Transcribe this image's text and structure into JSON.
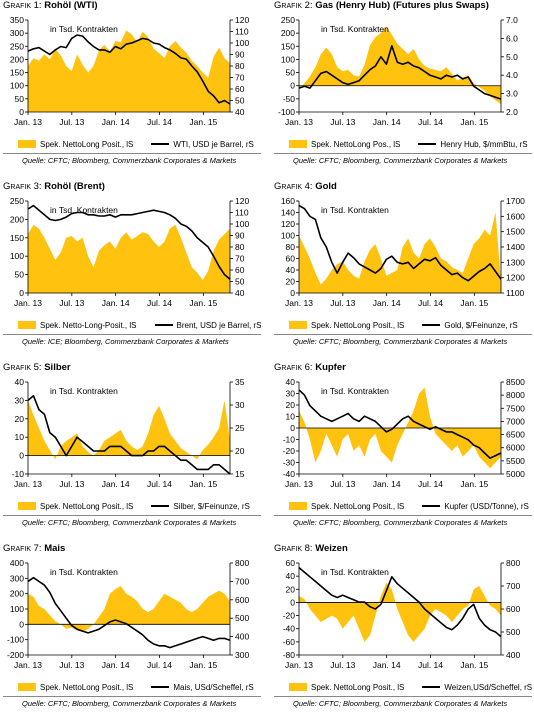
{
  "style": {
    "fill_color": "#ffc20e",
    "line_color": "#000000",
    "rule_color": "#888888"
  },
  "inner_label": "in Tsd. Kontrakten",
  "x_ticks": [
    "Jan. 13",
    "Jul. 13",
    "Jan. 14",
    "Jul. 14",
    "Jan. 15"
  ],
  "chart_data": [
    {
      "type": "area",
      "title_prefix": "Grafik 1:",
      "title_bold": "Rohöl (WTI)",
      "legend_area": "Spek. NettoLong Posit., lS",
      "legend_line": "WTI, USD je Barrel, rS",
      "source": "Quelle: CFTC; Bloomberg, Commerzbank Corporates & Markets",
      "y_left": {
        "min": 0,
        "max": 350,
        "ticks": [
          0,
          50,
          100,
          150,
          200,
          250,
          300,
          350
        ]
      },
      "y_right": {
        "min": 40,
        "max": 120,
        "ticks": [
          40,
          50,
          60,
          70,
          80,
          90,
          100,
          110,
          120
        ]
      },
      "series": [
        {
          "axis": "left",
          "kind": "area",
          "values": [
            175,
            205,
            195,
            220,
            200,
            240,
            215,
            175,
            155,
            220,
            180,
            150,
            175,
            235,
            255,
            230,
            270,
            265,
            310,
            295,
            265,
            305,
            285,
            240,
            225,
            205,
            250,
            270,
            245,
            225,
            195,
            175,
            150,
            130,
            210,
            245,
            205,
            185
          ]
        },
        {
          "axis": "right",
          "kind": "line",
          "values": [
            93,
            95,
            96,
            93,
            90,
            94,
            97,
            96,
            104,
            107,
            106,
            101,
            97,
            94,
            94,
            92,
            97,
            95,
            99,
            100,
            102,
            104,
            103,
            100,
            99,
            96,
            94,
            91,
            87,
            86,
            80,
            75,
            67,
            58,
            54,
            48,
            50,
            47
          ]
        }
      ]
    },
    {
      "type": "area",
      "title_prefix": "Grafik 2:",
      "title_bold": "Gas (Henry Hub) (Futures plus Swaps)",
      "legend_area": "Spek. NettoLong Pos., lS",
      "legend_line": "Henry Hub, $/mmBtu, rS",
      "source": "Quelle: CFTC; Bloomberg, Commerzbank Corporates & Markets",
      "y_left": {
        "min": -100,
        "max": 250,
        "ticks": [
          -100,
          -50,
          0,
          50,
          100,
          150,
          200,
          250
        ]
      },
      "y_right": {
        "min": 2.0,
        "max": 7.0,
        "ticks": [
          "2.0",
          "3.0",
          "4.0",
          "5.0",
          "6.0",
          "7.0"
        ]
      },
      "series": [
        {
          "axis": "left",
          "kind": "area",
          "values": [
            -10,
            10,
            35,
            70,
            120,
            145,
            120,
            70,
            55,
            60,
            40,
            35,
            80,
            155,
            185,
            200,
            225,
            195,
            160,
            140,
            120,
            140,
            100,
            75,
            65,
            60,
            55,
            70,
            45,
            20,
            30,
            40,
            10,
            -5,
            -20,
            -40,
            -55,
            -70
          ]
        },
        {
          "axis": "right",
          "kind": "line",
          "values": [
            3.3,
            3.4,
            3.3,
            3.7,
            4.1,
            4.2,
            4.0,
            3.8,
            3.6,
            3.5,
            3.6,
            3.7,
            4.0,
            4.3,
            4.5,
            5.0,
            4.6,
            5.6,
            4.7,
            4.6,
            4.7,
            4.5,
            4.4,
            4.2,
            4.0,
            3.9,
            3.8,
            4.0,
            3.9,
            4.0,
            3.8,
            3.9,
            3.4,
            3.2,
            3.0,
            2.9,
            2.8,
            2.7
          ]
        }
      ]
    },
    {
      "type": "area",
      "title_prefix": "Grafik 3:",
      "title_bold": "Rohöl (Brent)",
      "legend_area": "Spek. Netto-Long-Posit., lS",
      "legend_line": "Brent, USD je Barrel, rS",
      "source": "Quelle: ICE; Bloomberg, Commerzbank Corporates & Markets",
      "y_left": {
        "min": 0,
        "max": 250,
        "ticks": [
          0,
          50,
          100,
          150,
          200,
          250
        ]
      },
      "y_right": {
        "min": 40,
        "max": 120,
        "ticks": [
          40,
          50,
          60,
          70,
          80,
          90,
          100,
          110,
          120
        ]
      },
      "series": [
        {
          "axis": "left",
          "kind": "area",
          "values": [
            160,
            185,
            175,
            150,
            120,
            90,
            110,
            150,
            155,
            140,
            150,
            100,
            70,
            115,
            130,
            140,
            120,
            150,
            165,
            145,
            155,
            165,
            160,
            140,
            125,
            140,
            175,
            185,
            150,
            110,
            70,
            55,
            35,
            60,
            115,
            145,
            160,
            175
          ]
        },
        {
          "axis": "right",
          "kind": "line",
          "values": [
            113,
            116,
            112,
            108,
            104,
            103,
            104,
            106,
            109,
            110,
            110,
            108,
            108,
            107,
            107,
            108,
            106,
            108,
            108,
            108,
            109,
            110,
            111,
            112,
            111,
            110,
            108,
            105,
            100,
            98,
            94,
            88,
            84,
            80,
            72,
            63,
            56,
            52
          ]
        }
      ]
    },
    {
      "type": "area",
      "title_prefix": "Grafik 4:",
      "title_bold": "Gold",
      "legend_area": "Spek. NettoLong Posit., lS",
      "legend_line": "Gold, $/Feinunze, rS",
      "source": "Quelle: CFTC; Bloomberg, Commerzbank Corporates & Markets",
      "y_left": {
        "min": 0,
        "max": 160,
        "ticks": [
          0,
          20,
          40,
          60,
          80,
          100,
          120,
          140,
          160
        ]
      },
      "y_right": {
        "min": 1100,
        "max": 1700,
        "ticks": [
          1100,
          1200,
          1300,
          1400,
          1500,
          1600,
          1700
        ]
      },
      "series": [
        {
          "axis": "left",
          "kind": "area",
          "values": [
            100,
            80,
            60,
            35,
            15,
            25,
            40,
            50,
            55,
            40,
            30,
            25,
            55,
            75,
            85,
            60,
            30,
            35,
            40,
            80,
            95,
            70,
            60,
            85,
            95,
            80,
            60,
            55,
            45,
            40,
            35,
            60,
            85,
            95,
            110,
            100,
            140,
            20
          ]
        },
        {
          "axis": "right",
          "kind": "line",
          "values": [
            1670,
            1650,
            1600,
            1580,
            1460,
            1400,
            1300,
            1230,
            1300,
            1360,
            1330,
            1290,
            1270,
            1250,
            1230,
            1260,
            1320,
            1340,
            1300,
            1290,
            1300,
            1260,
            1290,
            1320,
            1310,
            1330,
            1280,
            1250,
            1220,
            1230,
            1200,
            1180,
            1210,
            1240,
            1260,
            1290,
            1240,
            1190
          ]
        }
      ]
    },
    {
      "type": "area",
      "title_prefix": "Grafik 5:",
      "title_bold": "Silber",
      "legend_area": "Spek. NettoLong Posit., lS",
      "legend_line": "Silber, $/Feinunze, rS",
      "source": "Quelle: CFTC; Bloomberg, Commerzbank Corporates & Markets",
      "y_left": {
        "min": -10,
        "max": 40,
        "ticks": [
          -10,
          0,
          10,
          20,
          30,
          40
        ]
      },
      "y_right": {
        "min": 15,
        "max": 35,
        "ticks": [
          15,
          20,
          25,
          30,
          35
        ]
      },
      "series": [
        {
          "axis": "left",
          "kind": "area",
          "values": [
            30,
            22,
            15,
            8,
            3,
            -2,
            5,
            8,
            10,
            12,
            5,
            2,
            0,
            3,
            8,
            10,
            12,
            14,
            8,
            5,
            3,
            5,
            12,
            22,
            27,
            20,
            12,
            8,
            4,
            2,
            0,
            -2,
            3,
            6,
            10,
            15,
            30,
            8
          ]
        },
        {
          "axis": "right",
          "kind": "line",
          "values": [
            31,
            32,
            29,
            28,
            24,
            23,
            21,
            19,
            21,
            23,
            22,
            21,
            20,
            20,
            20,
            21,
            21,
            21,
            20,
            19,
            19,
            19,
            20,
            20,
            21,
            21,
            20,
            19,
            18,
            18,
            17,
            16,
            16,
            16,
            17,
            17,
            16,
            15
          ]
        }
      ]
    },
    {
      "type": "area",
      "title_prefix": "Grafik 6:",
      "title_bold": "Kupfer",
      "legend_area": "Spek. NettoLong Posit., lS",
      "legend_line": "Kupfer (USD/Tonne), rS",
      "source": "Quelle: CFTC; Bloomberg, Commerzbank Corporates & Markets",
      "y_left": {
        "min": -40,
        "max": 40,
        "ticks": [
          -40,
          -30,
          -20,
          -10,
          0,
          10,
          20,
          30,
          40
        ]
      },
      "y_right": {
        "min": 5000,
        "max": 8500,
        "ticks": [
          5000,
          5500,
          6000,
          6500,
          7000,
          7500,
          8000,
          8500
        ]
      },
      "series": [
        {
          "axis": "left",
          "kind": "area",
          "values": [
            15,
            5,
            -10,
            -30,
            -20,
            -5,
            -15,
            -25,
            -10,
            -5,
            -20,
            -15,
            -25,
            -10,
            -5,
            -20,
            -25,
            -30,
            -15,
            -5,
            5,
            15,
            30,
            35,
            10,
            -5,
            -10,
            -15,
            -20,
            -15,
            -25,
            -20,
            -15,
            -25,
            -30,
            -35,
            -30,
            -25
          ]
        },
        {
          "axis": "right",
          "kind": "line",
          "values": [
            8200,
            8000,
            7600,
            7400,
            7200,
            7100,
            7000,
            7100,
            7200,
            7300,
            7100,
            7000,
            7200,
            7100,
            7000,
            6800,
            6600,
            6700,
            6900,
            7100,
            7200,
            7000,
            6900,
            6800,
            6700,
            6800,
            6700,
            6600,
            6600,
            6500,
            6400,
            6300,
            6100,
            6000,
            5800,
            5600,
            5700,
            5800
          ]
        }
      ]
    },
    {
      "type": "area",
      "title_prefix": "Grafik 7:",
      "title_bold": "Mais",
      "legend_area": "Spek. NettoLong Posit., lS",
      "legend_line": "Mais, USd/Scheffel, rS",
      "source": "Quelle: CFTC; Bloomberg, Commerzbank Corporates & Markets",
      "y_left": {
        "min": -200,
        "max": 400,
        "ticks": [
          -200,
          -100,
          0,
          100,
          200,
          300,
          400
        ]
      },
      "y_right": {
        "min": 300,
        "max": 800,
        "ticks": [
          300,
          400,
          500,
          600,
          700,
          800
        ]
      },
      "series": [
        {
          "axis": "left",
          "kind": "area",
          "values": [
            200,
            180,
            120,
            100,
            60,
            20,
            0,
            -30,
            -20,
            -40,
            -50,
            -30,
            0,
            50,
            100,
            200,
            230,
            250,
            200,
            180,
            150,
            100,
            80,
            100,
            150,
            200,
            180,
            160,
            140,
            100,
            80,
            100,
            140,
            180,
            200,
            220,
            200,
            150
          ]
        },
        {
          "axis": "right",
          "kind": "line",
          "values": [
            700,
            720,
            700,
            680,
            640,
            580,
            540,
            500,
            460,
            440,
            430,
            420,
            430,
            440,
            460,
            480,
            490,
            480,
            470,
            450,
            430,
            410,
            380,
            360,
            350,
            350,
            340,
            350,
            360,
            370,
            380,
            390,
            400,
            390,
            380,
            390,
            390,
            380
          ]
        }
      ]
    },
    {
      "type": "area",
      "title_prefix": "Grafik 8:",
      "title_bold": "Weizen",
      "legend_area": "Spek. NettoLong Posit., lS",
      "legend_line": "Weizen,USd/Scheffel, rS",
      "source": "Quelle: CFTC; Bloomberg, Commerzbank Corporates & Markets",
      "y_left": {
        "min": -80,
        "max": 60,
        "ticks": [
          -80,
          -60,
          -40,
          -20,
          0,
          20,
          40,
          60
        ]
      },
      "y_right": {
        "min": 400,
        "max": 800,
        "ticks": [
          400,
          500,
          600,
          700,
          800
        ]
      },
      "series": [
        {
          "axis": "left",
          "kind": "area",
          "values": [
            10,
            5,
            -10,
            -20,
            -30,
            -25,
            -20,
            -25,
            -40,
            -30,
            -20,
            -40,
            -60,
            -50,
            -20,
            10,
            30,
            20,
            -10,
            -30,
            -50,
            -60,
            -50,
            -40,
            -20,
            -10,
            -15,
            -20,
            -30,
            -20,
            -10,
            -5,
            20,
            25,
            10,
            -5,
            -10,
            -20
          ]
        },
        {
          "axis": "right",
          "kind": "line",
          "values": [
            780,
            760,
            740,
            720,
            700,
            680,
            660,
            650,
            660,
            650,
            640,
            630,
            630,
            610,
            600,
            620,
            680,
            740,
            710,
            690,
            670,
            650,
            630,
            600,
            580,
            560,
            540,
            520,
            510,
            530,
            560,
            600,
            620,
            560,
            530,
            510,
            500,
            480
          ]
        }
      ]
    }
  ]
}
